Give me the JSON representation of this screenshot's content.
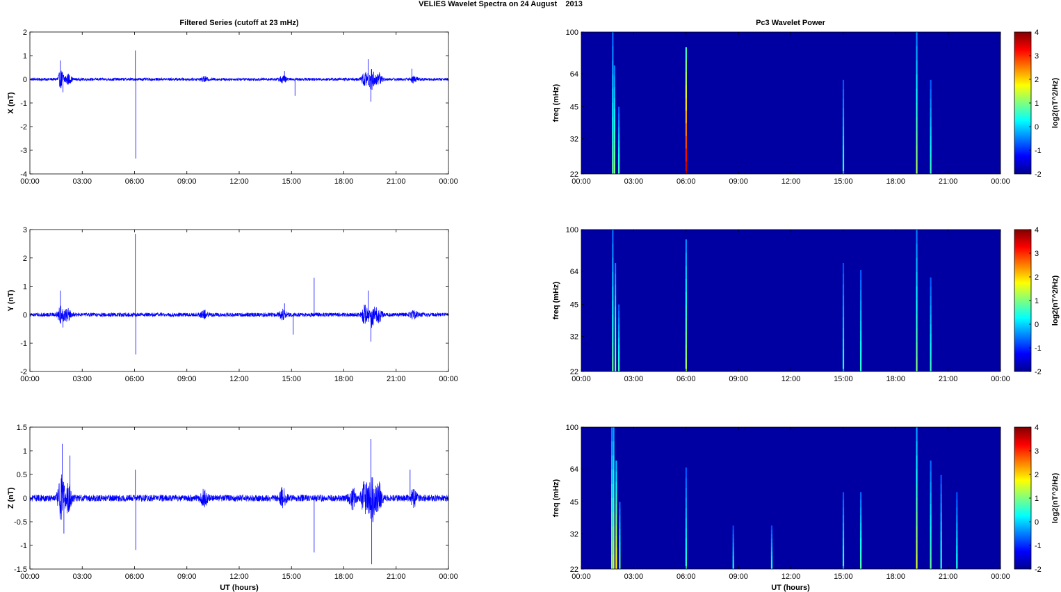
{
  "figure": {
    "title": "VELIES Wavelet Spectra on 24 August    2013",
    "left_title": "Filtered Series (cutoff at 23 mHz)",
    "right_title": "Pc3 Wavelet Power",
    "xlabel": "UT (hours)",
    "time_ticks": [
      "00:00",
      "03:00",
      "06:00",
      "09:00",
      "12:00",
      "15:00",
      "18:00",
      "21:00",
      "00:00"
    ]
  },
  "chart_data": [
    {
      "type": "line",
      "component": "X",
      "ylabel": "X (nT)",
      "xlim": [
        0,
        24
      ],
      "ylim": [
        -4,
        2
      ],
      "yticks": [
        -4,
        -3,
        -2,
        -1,
        0,
        1,
        2
      ],
      "series_color": "#0000ff",
      "baseline_amplitude": 0.06,
      "bursts": [
        [
          1.8,
          0.35
        ],
        [
          2.2,
          0.2
        ],
        [
          10.0,
          0.08
        ],
        [
          14.5,
          0.15
        ],
        [
          19.2,
          0.3
        ],
        [
          19.6,
          0.45
        ],
        [
          20.0,
          0.25
        ],
        [
          22.0,
          0.12
        ]
      ],
      "spikes": [
        [
          1.75,
          0.8
        ],
        [
          1.9,
          -0.55
        ],
        [
          6.05,
          1.22
        ],
        [
          6.07,
          -3.35
        ],
        [
          14.6,
          0.35
        ],
        [
          15.2,
          -0.7
        ],
        [
          19.4,
          0.85
        ],
        [
          19.55,
          -0.95
        ],
        [
          21.9,
          0.45
        ]
      ]
    },
    {
      "type": "line",
      "component": "Y",
      "ylabel": "Y (nT)",
      "xlim": [
        0,
        24
      ],
      "ylim": [
        -2,
        3
      ],
      "yticks": [
        -2,
        -1,
        0,
        1,
        2,
        3
      ],
      "series_color": "#0000ff",
      "baseline_amplitude": 0.07,
      "bursts": [
        [
          1.8,
          0.3
        ],
        [
          2.2,
          0.2
        ],
        [
          10.0,
          0.12
        ],
        [
          14.5,
          0.15
        ],
        [
          19.2,
          0.3
        ],
        [
          19.6,
          0.4
        ],
        [
          20.0,
          0.25
        ],
        [
          22.0,
          0.12
        ]
      ],
      "spikes": [
        [
          1.75,
          0.85
        ],
        [
          1.9,
          -0.45
        ],
        [
          6.05,
          2.85
        ],
        [
          6.07,
          -1.4
        ],
        [
          14.6,
          0.4
        ],
        [
          15.1,
          -0.7
        ],
        [
          16.3,
          1.3
        ],
        [
          19.4,
          0.85
        ],
        [
          19.55,
          -0.95
        ]
      ]
    },
    {
      "type": "line",
      "component": "Z",
      "ylabel": "Z (nT)",
      "xlim": [
        0,
        24
      ],
      "ylim": [
        -1.5,
        1.5
      ],
      "yticks": [
        -1.5,
        -1,
        -0.5,
        0,
        0.5,
        1,
        1.5
      ],
      "series_color": "#0000ff",
      "baseline_amplitude": 0.07,
      "bursts": [
        [
          1.8,
          0.45
        ],
        [
          2.2,
          0.3
        ],
        [
          10.0,
          0.15
        ],
        [
          14.5,
          0.18
        ],
        [
          18.5,
          0.2
        ],
        [
          19.2,
          0.35
        ],
        [
          19.6,
          0.5
        ],
        [
          20.0,
          0.3
        ],
        [
          22.0,
          0.15
        ]
      ],
      "spikes": [
        [
          1.85,
          1.15
        ],
        [
          1.95,
          -0.75
        ],
        [
          2.3,
          0.9
        ],
        [
          6.05,
          0.6
        ],
        [
          6.07,
          -1.1
        ],
        [
          16.3,
          -1.15
        ],
        [
          19.55,
          1.25
        ],
        [
          19.6,
          -1.4
        ],
        [
          21.8,
          0.6
        ]
      ]
    },
    {
      "type": "heatmap",
      "component": "X",
      "ylabel": "freq (mHz)",
      "colorbar_label": "log2(nT^2/Hz)",
      "xlim": [
        0,
        24
      ],
      "ylim": [
        22,
        100
      ],
      "yscale": "log",
      "yticks": [
        22,
        32,
        45,
        64,
        100
      ],
      "clim": [
        -2,
        4
      ],
      "colorbar_ticks": [
        -2,
        -1,
        0,
        1,
        2,
        3,
        4
      ],
      "background_value": -1.8,
      "streaks": [
        [
          1.8,
          100,
          0.8
        ],
        [
          1.9,
          70,
          1.0
        ],
        [
          2.15,
          45,
          0.6
        ],
        [
          6.0,
          85,
          3.5
        ],
        [
          15.0,
          60,
          0.5
        ],
        [
          19.2,
          100,
          1.2
        ],
        [
          20.0,
          60,
          0.6
        ]
      ]
    },
    {
      "type": "heatmap",
      "component": "Y",
      "ylabel": "freq (mHz)",
      "colorbar_label": "log2(nT^2/Hz)",
      "xlim": [
        0,
        24
      ],
      "ylim": [
        22,
        100
      ],
      "yscale": "log",
      "yticks": [
        22,
        32,
        45,
        64,
        100
      ],
      "clim": [
        -2,
        4
      ],
      "colorbar_ticks": [
        -2,
        -1,
        0,
        1,
        2,
        3,
        4
      ],
      "background_value": -1.8,
      "streaks": [
        [
          1.8,
          100,
          0.8
        ],
        [
          1.95,
          70,
          1.0
        ],
        [
          2.15,
          45,
          0.6
        ],
        [
          6.0,
          90,
          1.2
        ],
        [
          15.0,
          70,
          0.4
        ],
        [
          16.0,
          65,
          0.5
        ],
        [
          19.2,
          100,
          1.0
        ],
        [
          20.0,
          60,
          0.6
        ]
      ]
    },
    {
      "type": "heatmap",
      "component": "Z",
      "ylabel": "freq (mHz)",
      "colorbar_label": "log2(nT^2/Hz)",
      "xlim": [
        0,
        24
      ],
      "ylim": [
        22,
        100
      ],
      "yscale": "log",
      "yticks": [
        22,
        32,
        45,
        64,
        100
      ],
      "clim": [
        -2,
        4
      ],
      "colorbar_ticks": [
        -2,
        -1,
        0,
        1,
        2,
        3,
        4
      ],
      "background_value": -1.8,
      "streaks": [
        [
          1.75,
          100,
          1.0
        ],
        [
          1.85,
          100,
          1.5
        ],
        [
          2.0,
          70,
          1.8
        ],
        [
          2.2,
          45,
          0.8
        ],
        [
          6.0,
          65,
          0.5
        ],
        [
          8.7,
          35,
          0.3
        ],
        [
          10.9,
          35,
          0.4
        ],
        [
          15.0,
          50,
          0.5
        ],
        [
          16.0,
          50,
          0.7
        ],
        [
          19.2,
          100,
          1.5
        ],
        [
          20.0,
          70,
          0.8
        ],
        [
          20.6,
          60,
          0.5
        ],
        [
          21.5,
          50,
          0.4
        ]
      ]
    }
  ]
}
